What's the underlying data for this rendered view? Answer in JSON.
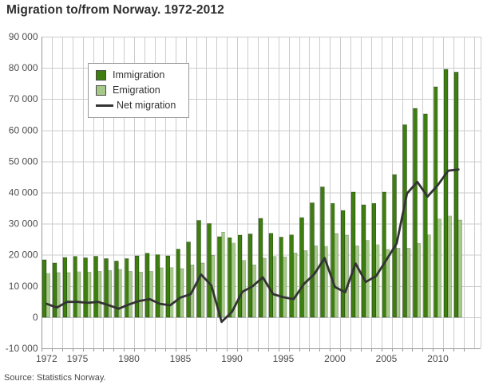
{
  "title": "Migration to/from Norway. 1972-2012",
  "source": "Source: Statistics Norway.",
  "legend": {
    "immigration": "Immigration",
    "emigration": "Emigration",
    "net": "Net migration"
  },
  "colors": {
    "immigration": "#3e7e10",
    "emigration": "#a6c98a",
    "net_line": "#333333",
    "grid": "#cccccc",
    "axis": "#999999",
    "tick_text": "#4d4d4d"
  },
  "chart_data": {
    "type": "bar",
    "title": "Migration to/from Norway. 1972-2012",
    "xlabel": "",
    "ylabel": "",
    "ylim": [
      -10000,
      90000
    ],
    "grid": true,
    "legend_position": "upper-left-inside",
    "x": [
      1972,
      1973,
      1974,
      1975,
      1976,
      1977,
      1978,
      1979,
      1980,
      1981,
      1982,
      1983,
      1984,
      1985,
      1986,
      1987,
      1988,
      1989,
      1990,
      1991,
      1992,
      1993,
      1994,
      1995,
      1996,
      1997,
      1998,
      1999,
      2000,
      2001,
      2002,
      2003,
      2004,
      2005,
      2006,
      2007,
      2008,
      2009,
      2010,
      2011,
      2012
    ],
    "series": [
      {
        "name": "Immigration",
        "type": "bar",
        "values": [
          18400,
          17400,
          19200,
          19500,
          19000,
          19600,
          18800,
          18000,
          18800,
          19700,
          20500,
          20100,
          19700,
          21900,
          24200,
          31100,
          30000,
          25800,
          25500,
          26300,
          26700,
          31700,
          26900,
          25700,
          26400,
          32000,
          36700,
          41800,
          36500,
          34300,
          40100,
          36000,
          36500,
          40100,
          45800,
          61800,
          67000,
          65200,
          73900,
          79500,
          78600
        ]
      },
      {
        "name": "Emigration",
        "type": "bar",
        "values": [
          14100,
          14300,
          14300,
          14600,
          14400,
          14700,
          14900,
          15300,
          14700,
          14500,
          14700,
          15800,
          15900,
          15600,
          16800,
          17400,
          19800,
          27300,
          23800,
          18200,
          16800,
          18900,
          19500,
          19300,
          20600,
          21300,
          22900,
          22800,
          26800,
          26300,
          22900,
          24700,
          23300,
          21700,
          22100,
          22100,
          23600,
          26500,
          31500,
          32500,
          31200
        ]
      },
      {
        "name": "Net migration",
        "type": "line",
        "values": [
          4300,
          3100,
          4900,
          4900,
          4600,
          4900,
          3900,
          2700,
          4100,
          5200,
          5800,
          4300,
          3800,
          6300,
          7400,
          13700,
          10200,
          -1500,
          1700,
          8100,
          9900,
          12800,
          7400,
          6400,
          5800,
          10700,
          13800,
          19000,
          9700,
          8000,
          17200,
          11300,
          13200,
          18400,
          23700,
          39700,
          43400,
          38700,
          42400,
          47000,
          47400
        ]
      }
    ],
    "yticks": [
      {
        "value": 90000,
        "label": "90 000"
      },
      {
        "value": 80000,
        "label": "80 000"
      },
      {
        "value": 70000,
        "label": "70 000"
      },
      {
        "value": 60000,
        "label": "60 000"
      },
      {
        "value": 50000,
        "label": "50 000"
      },
      {
        "value": 40000,
        "label": "40 000"
      },
      {
        "value": 30000,
        "label": "30 000"
      },
      {
        "value": 20000,
        "label": "20 000"
      },
      {
        "value": 10000,
        "label": "10 000"
      },
      {
        "value": 0,
        "label": "0"
      },
      {
        "value": -10000,
        "label": "-10 000"
      }
    ],
    "xticks": [
      {
        "year": 1972,
        "label": "1972"
      },
      {
        "year": 1975,
        "label": "1975"
      },
      {
        "year": 1980,
        "label": "1980"
      },
      {
        "year": 1985,
        "label": "1985"
      },
      {
        "year": 1990,
        "label": "1990"
      },
      {
        "year": 1995,
        "label": "1995"
      },
      {
        "year": 2000,
        "label": "2000"
      },
      {
        "year": 2005,
        "label": "2005"
      },
      {
        "year": 2010,
        "label": "2010"
      }
    ]
  }
}
